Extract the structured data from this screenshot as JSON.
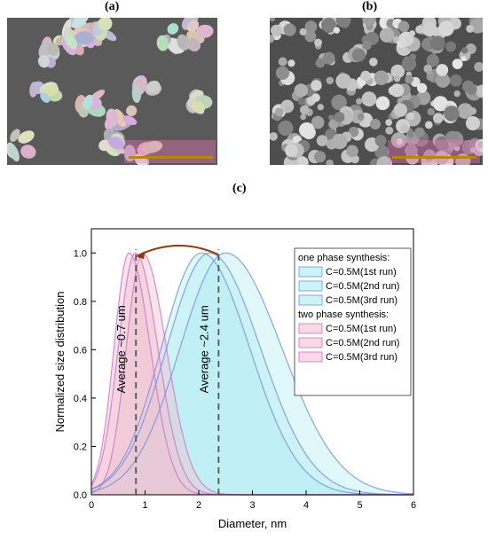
{
  "panels": {
    "a": "(a)",
    "b": "(b)",
    "c": "(c)"
  },
  "colors": {
    "one_phase": "#6f8fe0",
    "one_phase_fill": "#a8ecf4",
    "two_phase": "#d070c8",
    "two_phase_fill": "#f0c0d0",
    "dashed": "#555555",
    "arrow": "#8b3a10",
    "scalebar": "#b8860b"
  },
  "chart_data": {
    "type": "area",
    "xlabel": "Diameter, nm",
    "ylabel": "Normalized size distribution",
    "xlim": [
      0,
      6
    ],
    "ylim": [
      0,
      1.1
    ],
    "xticks": [
      "0",
      "1",
      "2",
      "3",
      "4",
      "5",
      "6"
    ],
    "yticks": [
      "0.0",
      "0.2",
      "0.4",
      "0.6",
      "0.8",
      "1.0"
    ],
    "legend_position": "top-right",
    "legend_groups": [
      {
        "title": "one phase synthesis:",
        "series": [
          {
            "name": "C=0.5M(1st run)",
            "peak": 2.5,
            "sigma_left": 0.85,
            "sigma_right": 1.05
          },
          {
            "name": "C=0.5M(2nd run)",
            "peak": 2.05,
            "sigma_left": 0.75,
            "sigma_right": 0.9
          },
          {
            "name": "C=0.5M(3rd run)",
            "peak": 2.2,
            "sigma_left": 0.8,
            "sigma_right": 0.95
          }
        ]
      },
      {
        "title": "two phase synthesis:",
        "series": [
          {
            "name": "C=0.5M(1st run)",
            "peak": 0.95,
            "sigma_left": 0.3,
            "sigma_right": 0.45
          },
          {
            "name": "C=0.5M(2nd run)",
            "peak": 0.7,
            "sigma_left": 0.28,
            "sigma_right": 0.4
          },
          {
            "name": "C=0.5M(3rd run)",
            "peak": 0.82,
            "sigma_left": 0.32,
            "sigma_right": 0.42
          }
        ]
      }
    ],
    "annotations": [
      {
        "text": "Average ~0.7 um",
        "x": 0.83
      },
      {
        "text": "Average ~2.4 um",
        "x": 2.37
      }
    ]
  }
}
